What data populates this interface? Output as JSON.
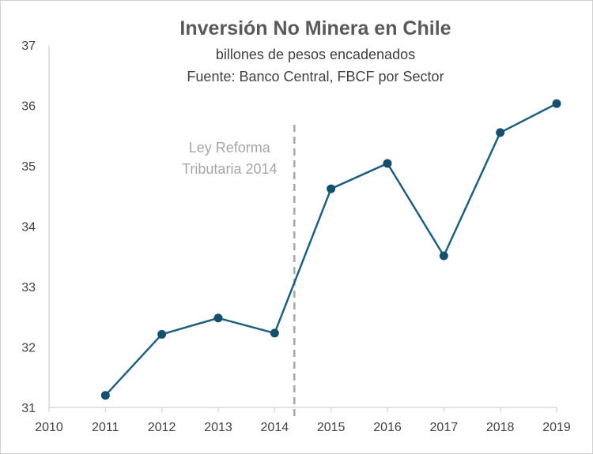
{
  "chart_data": {
    "type": "line",
    "title": "Inversión No Minera en Chile",
    "subtitle_lines": [
      "billones de pesos encadenados",
      "Fuente: Banco Central, FBCF por Sector"
    ],
    "xlabel": "",
    "ylabel": "",
    "x": [
      2011,
      2012,
      2013,
      2014,
      2015,
      2016,
      2017,
      2018,
      2019
    ],
    "series": [
      {
        "values": [
          31.2,
          32.21,
          32.48,
          32.23,
          34.62,
          35.04,
          33.51,
          35.55,
          36.03
        ]
      }
    ],
    "xlim": [
      2010,
      2019
    ],
    "ylim": [
      31,
      37
    ],
    "x_ticks": [
      2010,
      2011,
      2012,
      2013,
      2014,
      2015,
      2016,
      2017,
      2018,
      2019
    ],
    "y_ticks": [
      31,
      32,
      33,
      34,
      35,
      36,
      37
    ],
    "grid": false,
    "legend": "none",
    "annotation": {
      "lines": [
        "Ley Reforma",
        "Tributaria 2014"
      ],
      "x": 2014.35
    },
    "colors": {
      "series": "#1f5f7f",
      "marker": "#14506d",
      "axis": "#d9d9d9",
      "annotation": "#a6a6a6"
    }
  }
}
